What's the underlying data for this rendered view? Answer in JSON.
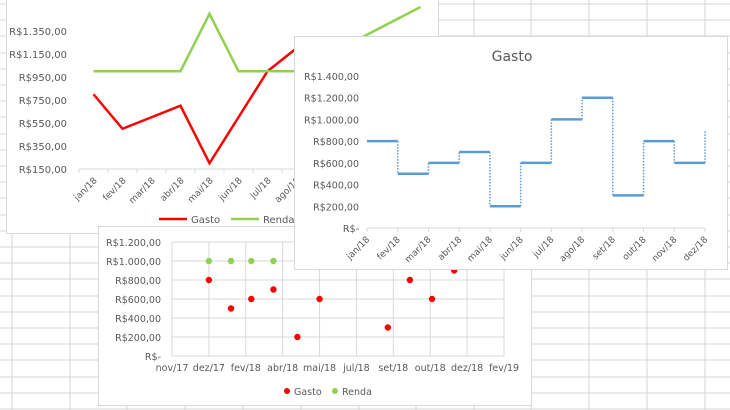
{
  "colors": {
    "gasto_line": "#ff0000",
    "renda_line": "#92d050",
    "step_line": "#5b9bd5",
    "axis_text": "#595959",
    "gridline": "#d9d9d9",
    "sheet_grid": "#d4d4d4"
  },
  "chart_data": [
    {
      "id": "line-chart",
      "type": "line",
      "title": "",
      "categories": [
        "jan/18",
        "fev/18",
        "mar/18",
        "abr/18",
        "mai/18",
        "jun/18",
        "jul/18",
        "ago/18"
      ],
      "series": [
        {
          "name": "Gasto",
          "values": [
            800,
            500,
            600,
            700,
            200,
            600,
            1000,
            1200
          ]
        },
        {
          "name": "Renda",
          "values": [
            1000,
            1000,
            1000,
            1000,
            1500,
            1000,
            1000,
            1000
          ]
        }
      ],
      "y_tick_labels": [
        "R$1.350,00",
        "R$1.150,00",
        "R$950,00",
        "R$750,00",
        "R$550,00",
        "R$350,00",
        "R$150,00"
      ],
      "y_ticks": [
        1350,
        1150,
        950,
        750,
        550,
        350,
        150
      ],
      "ylim": [
        150,
        1350
      ],
      "xlabel": "",
      "ylabel": "",
      "grid": false,
      "legend": {
        "position": "bottom",
        "entries": [
          "Gasto",
          "Renda"
        ]
      }
    },
    {
      "id": "step-chart",
      "type": "line",
      "style": "step",
      "title": "Gasto",
      "categories": [
        "jan/18",
        "fev/18",
        "mar/18",
        "abr/18",
        "mai/18",
        "jun/18",
        "jul/18",
        "ago/18",
        "set/18",
        "out/18",
        "nov/18",
        "dez/18"
      ],
      "series": [
        {
          "name": "Gasto",
          "values": [
            800,
            500,
            600,
            700,
            200,
            600,
            1000,
            1200,
            300,
            800,
            600,
            900
          ]
        }
      ],
      "y_tick_labels": [
        "R$1.400,00",
        "R$1.200,00",
        "R$1.000,00",
        "R$800,00",
        "R$600,00",
        "R$400,00",
        "R$200,00",
        "R$-"
      ],
      "y_ticks": [
        1400,
        1200,
        1000,
        800,
        600,
        400,
        200,
        0
      ],
      "ylim": [
        0,
        1400
      ],
      "xlabel": "",
      "ylabel": "",
      "grid": false,
      "legend": null
    },
    {
      "id": "scatter-chart",
      "type": "scatter",
      "title": "",
      "x_tick_labels": [
        "nov/17",
        "dez/17",
        "fev/18",
        "abr/18",
        "mai/18",
        "jul/18",
        "set/18",
        "out/18",
        "dez/18",
        "fev/19"
      ],
      "series": [
        {
          "name": "Gasto",
          "points": [
            {
              "x": 1.0,
              "y": 800
            },
            {
              "x": 1.6,
              "y": 500
            },
            {
              "x": 2.15,
              "y": 600
            },
            {
              "x": 2.75,
              "y": 700
            },
            {
              "x": 3.4,
              "y": 200
            },
            {
              "x": 4.0,
              "y": 600
            },
            {
              "x": 5.85,
              "y": 300
            },
            {
              "x": 6.45,
              "y": 800
            },
            {
              "x": 7.05,
              "y": 600
            },
            {
              "x": 7.65,
              "y": 900
            }
          ]
        },
        {
          "name": "Renda",
          "points": [
            {
              "x": 1.0,
              "y": 1000
            },
            {
              "x": 1.6,
              "y": 1000
            },
            {
              "x": 2.15,
              "y": 1000
            },
            {
              "x": 2.75,
              "y": 1000
            }
          ]
        }
      ],
      "y_tick_labels": [
        "R$1.200,00",
        "R$1.000,00",
        "R$800,00",
        "R$600,00",
        "R$400,00",
        "R$200,00",
        "R$-"
      ],
      "y_ticks": [
        1200,
        1000,
        800,
        600,
        400,
        200,
        0
      ],
      "ylim": [
        0,
        1200
      ],
      "xlabel": "",
      "ylabel": "",
      "grid": true,
      "legend": {
        "position": "bottom",
        "entries": [
          "Gasto",
          "Renda"
        ]
      }
    }
  ]
}
